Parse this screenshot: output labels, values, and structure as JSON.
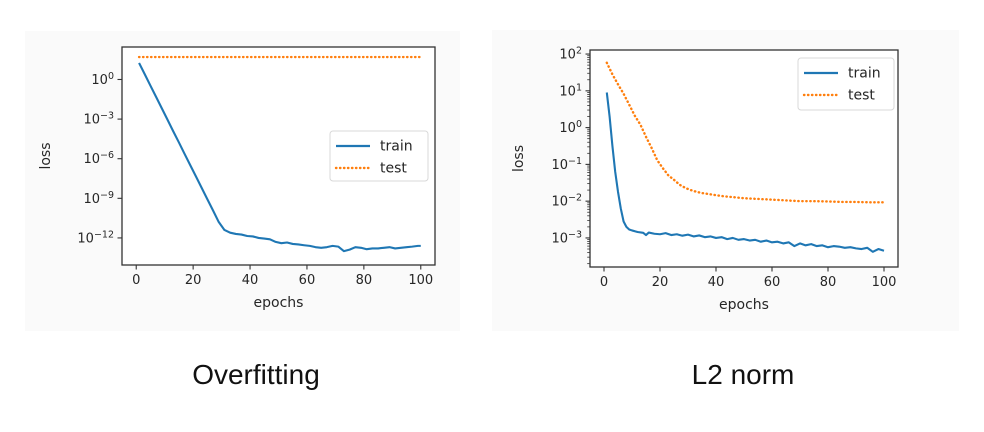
{
  "page": {
    "background": "#ffffff",
    "panel_background": "#fafafa",
    "text_color": "#262626",
    "train_color": "#1f77b4",
    "test_color": "#ff7f0e"
  },
  "chart_data": [
    {
      "type": "line",
      "caption": "Overfitting",
      "xlabel": "epochs",
      "ylabel": "loss",
      "x_ticks": [
        0,
        20,
        40,
        60,
        80,
        100
      ],
      "y_scale": "log",
      "y_tick_exponents": [
        0,
        -3,
        -6,
        -9,
        -12
      ],
      "y_minor_ticks": false,
      "grid": false,
      "xlim": [
        -5,
        105
      ],
      "ylim_log10": [
        -14.05,
        2.46
      ],
      "legend": {
        "position": "center right",
        "labels": [
          "train",
          "test"
        ]
      },
      "series": [
        {
          "name": "train",
          "color": "#1f77b4",
          "style": "solid",
          "points": [
            [
              1,
              18.0
            ],
            [
              3,
              2.5
            ],
            [
              5,
              0.34
            ],
            [
              7,
              0.047
            ],
            [
              9,
              0.0065
            ],
            [
              11,
              0.00089
            ],
            [
              13,
              0.00012
            ],
            [
              15,
              1.7e-05
            ],
            [
              17,
              2.3e-06
            ],
            [
              19,
              3.2e-07
            ],
            [
              21,
              4.5e-08
            ],
            [
              23,
              6.2e-09
            ],
            [
              25,
              8.5e-10
            ],
            [
              27,
              1.2e-10
            ],
            [
              29,
              1.6e-11
            ],
            [
              31,
              4e-12
            ],
            [
              33,
              2.5e-12
            ],
            [
              35,
              2e-12
            ],
            [
              37,
              1.8e-12
            ],
            [
              39,
              1.4e-12
            ],
            [
              41,
              1.3e-12
            ],
            [
              43,
              1e-12
            ],
            [
              45,
              8.9e-13
            ],
            [
              47,
              7.9e-13
            ],
            [
              49,
              5e-13
            ],
            [
              51,
              4e-13
            ],
            [
              53,
              4.5e-13
            ],
            [
              55,
              3.5e-13
            ],
            [
              57,
              3.2e-13
            ],
            [
              59,
              2.8e-13
            ],
            [
              61,
              2.5e-13
            ],
            [
              63,
              2e-13
            ],
            [
              65,
              1.8e-13
            ],
            [
              67,
              2e-13
            ],
            [
              69,
              2.5e-13
            ],
            [
              71,
              2.2e-13
            ],
            [
              73,
              1e-13
            ],
            [
              75,
              1.3e-13
            ],
            [
              77,
              2e-13
            ],
            [
              79,
              1.8e-13
            ],
            [
              81,
              1.4e-13
            ],
            [
              83,
              1.6e-13
            ],
            [
              85,
              1.6e-13
            ],
            [
              87,
              1.8e-13
            ],
            [
              89,
              2e-13
            ],
            [
              91,
              1.6e-13
            ],
            [
              93,
              1.8e-13
            ],
            [
              95,
              2e-13
            ],
            [
              97,
              2.2e-13
            ],
            [
              99,
              2.5e-13
            ],
            [
              100,
              2.5e-13
            ]
          ]
        },
        {
          "name": "test",
          "color": "#ff7f0e",
          "style": "dotted",
          "points": [
            [
              1,
              50.0
            ],
            [
              100,
              50.0
            ]
          ]
        }
      ]
    },
    {
      "type": "line",
      "caption": "L2 norm",
      "xlabel": "epochs",
      "ylabel": "loss",
      "x_ticks": [
        0,
        20,
        40,
        60,
        80,
        100
      ],
      "y_scale": "log",
      "y_tick_exponents": [
        2,
        1,
        0,
        -1,
        -2,
        -3
      ],
      "y_minor_ticks": true,
      "grid": false,
      "xlim": [
        -5,
        105
      ],
      "ylim_log10": [
        -3.79,
        2.11
      ],
      "legend": {
        "position": "upper right",
        "labels": [
          "train",
          "test"
        ]
      },
      "series": [
        {
          "name": "train",
          "color": "#1f77b4",
          "style": "solid",
          "points": [
            [
              1,
              9.0
            ],
            [
              2,
              2.0
            ],
            [
              3,
              0.32
            ],
            [
              4,
              0.063
            ],
            [
              5,
              0.018
            ],
            [
              6,
              0.0063
            ],
            [
              7,
              0.0028
            ],
            [
              8,
              0.002
            ],
            [
              9,
              0.0017
            ],
            [
              10,
              0.0016
            ],
            [
              12,
              0.00145
            ],
            [
              14,
              0.00138
            ],
            [
              15,
              0.0012
            ],
            [
              16,
              0.0014
            ],
            [
              18,
              0.0013
            ],
            [
              20,
              0.00126
            ],
            [
              22,
              0.00135
            ],
            [
              24,
              0.0012
            ],
            [
              26,
              0.00126
            ],
            [
              28,
              0.00115
            ],
            [
              30,
              0.00123
            ],
            [
              32,
              0.0011
            ],
            [
              34,
              0.00117
            ],
            [
              36,
              0.00105
            ],
            [
              38,
              0.0011
            ],
            [
              40,
              0.001
            ],
            [
              42,
              0.00105
            ],
            [
              44,
              0.00093
            ],
            [
              46,
              0.001
            ],
            [
              48,
              0.00089
            ],
            [
              50,
              0.00093
            ],
            [
              52,
              0.00085
            ],
            [
              54,
              0.00089
            ],
            [
              56,
              0.00079
            ],
            [
              58,
              0.00085
            ],
            [
              60,
              0.00076
            ],
            [
              62,
              0.00079
            ],
            [
              64,
              0.00071
            ],
            [
              66,
              0.00076
            ],
            [
              68,
              0.0006
            ],
            [
              70,
              0.00071
            ],
            [
              72,
              0.00063
            ],
            [
              74,
              0.00068
            ],
            [
              76,
              0.0006
            ],
            [
              78,
              0.00063
            ],
            [
              80,
              0.00056
            ],
            [
              82,
              0.0006
            ],
            [
              84,
              0.00058
            ],
            [
              86,
              0.00054
            ],
            [
              88,
              0.00056
            ],
            [
              90,
              0.00052
            ],
            [
              92,
              0.0005
            ],
            [
              94,
              0.00054
            ],
            [
              96,
              0.00042
            ],
            [
              98,
              0.0005
            ],
            [
              100,
              0.00045
            ]
          ]
        },
        {
          "name": "test",
          "color": "#ff7f0e",
          "style": "dotted",
          "points": [
            [
              1,
              58.0
            ],
            [
              3,
              28.0
            ],
            [
              5,
              15.0
            ],
            [
              7,
              8.3
            ],
            [
              9,
              4.2
            ],
            [
              11,
              2.1
            ],
            [
              13,
              1.2
            ],
            [
              15,
              0.56
            ],
            [
              17,
              0.28
            ],
            [
              19,
              0.13
            ],
            [
              21,
              0.079
            ],
            [
              23,
              0.05
            ],
            [
              25,
              0.038
            ],
            [
              27,
              0.028
            ],
            [
              29,
              0.023
            ],
            [
              31,
              0.02
            ],
            [
              33,
              0.018
            ],
            [
              35,
              0.0166
            ],
            [
              37,
              0.0158
            ],
            [
              40,
              0.0145
            ],
            [
              43,
              0.0135
            ],
            [
              46,
              0.0129
            ],
            [
              50,
              0.012
            ],
            [
              55,
              0.0115
            ],
            [
              60,
              0.011
            ],
            [
              65,
              0.0105
            ],
            [
              70,
              0.01
            ],
            [
              75,
              0.01
            ],
            [
              80,
              0.0098
            ],
            [
              85,
              0.0095
            ],
            [
              90,
              0.0095
            ],
            [
              95,
              0.0093
            ],
            [
              100,
              0.0093
            ]
          ]
        }
      ]
    }
  ]
}
